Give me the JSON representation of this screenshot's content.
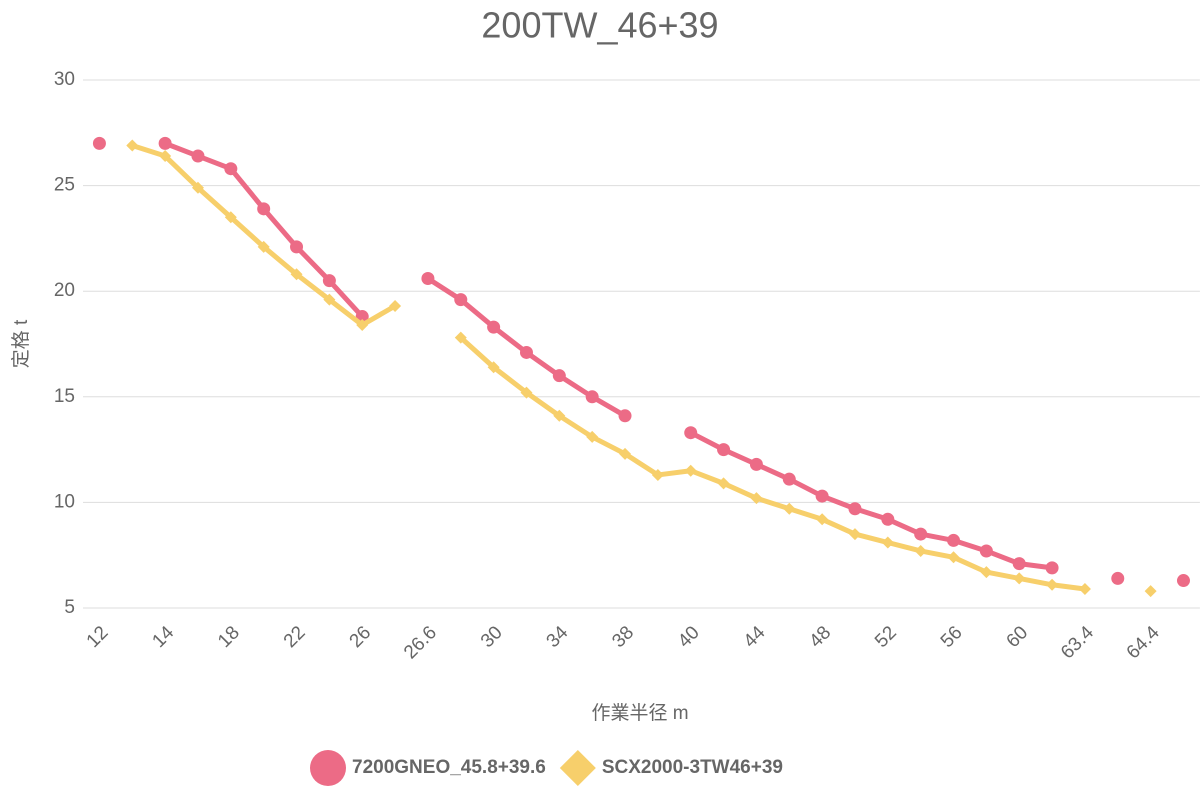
{
  "chart_data": {
    "type": "line",
    "title": "200TW_46+39",
    "x_label": "作業半径 m",
    "y_label": "定格 t",
    "categories": [
      "12",
      null,
      "14",
      null,
      "18",
      null,
      "22",
      null,
      "26",
      null,
      "26.6",
      null,
      "30",
      null,
      "34",
      null,
      "38",
      null,
      "40",
      null,
      "44",
      null,
      "48",
      null,
      "52",
      null,
      "56",
      null,
      "60",
      null,
      "63.4",
      null,
      "64.4",
      null
    ],
    "series": [
      {
        "name": "7200GNEO_45.8+39.6",
        "color": "#ec6b86",
        "marker": "circle",
        "values": [
          27.0,
          null,
          27.0,
          26.4,
          25.8,
          23.9,
          22.1,
          20.5,
          18.8,
          null,
          20.6,
          19.6,
          18.3,
          17.1,
          16.0,
          15.0,
          14.1,
          null,
          13.3,
          12.5,
          11.8,
          11.1,
          10.3,
          9.7,
          9.2,
          8.5,
          8.2,
          7.7,
          7.1,
          6.9,
          null,
          6.4,
          null,
          6.3
        ]
      },
      {
        "name": "SCX2000-3TW46+39",
        "color": "#f7cf6b",
        "marker": "diamond",
        "values": [
          null,
          26.9,
          26.4,
          24.9,
          23.5,
          22.1,
          20.8,
          19.6,
          18.4,
          19.3,
          null,
          17.8,
          16.4,
          15.2,
          14.1,
          13.1,
          12.3,
          11.3,
          11.5,
          10.9,
          10.2,
          9.7,
          9.2,
          8.5,
          8.1,
          7.7,
          7.4,
          6.7,
          6.4,
          6.1,
          5.9,
          null,
          5.8,
          null
        ]
      }
    ],
    "ylim": [
      5,
      30
    ],
    "yticks": [
      5,
      10,
      15,
      20,
      25,
      30
    ],
    "grid": true,
    "legend": "bottom"
  }
}
